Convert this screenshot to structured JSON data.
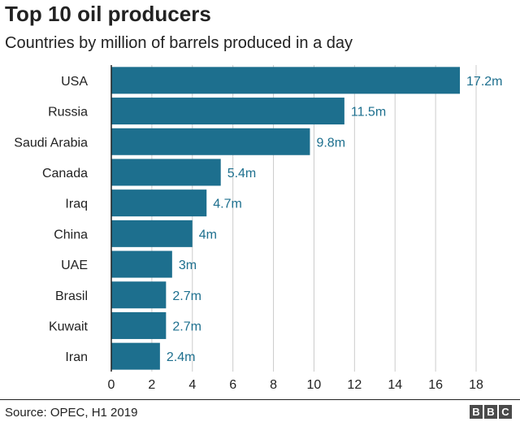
{
  "chart_data": {
    "type": "bar",
    "orientation": "horizontal",
    "title": "Top 10 oil producers",
    "subtitle": "Countries by million of barrels produced in a day",
    "categories": [
      "USA",
      "Russia",
      "Saudi Arabia",
      "Canada",
      "Iraq",
      "China",
      "UAE",
      "Brasil",
      "Kuwait",
      "Iran"
    ],
    "values": [
      17.2,
      11.5,
      9.8,
      5.4,
      4.7,
      4,
      3,
      2.7,
      2.7,
      2.4
    ],
    "value_labels": [
      "17.2m",
      "11.5m",
      "9.8m",
      "5.4m",
      "4.7m",
      "4m",
      "3m",
      "2.7m",
      "2.7m",
      "2.4m"
    ],
    "xlim": [
      0,
      18
    ],
    "xticks": [
      0,
      2,
      4,
      6,
      8,
      10,
      12,
      14,
      16,
      18
    ],
    "grid": true,
    "bar_color": "#1d6f8e",
    "label_color": "#1d6f8e"
  },
  "footer": {
    "source": "Source: OPEC, H1 2019",
    "logo_letters": [
      "B",
      "B",
      "C"
    ]
  }
}
